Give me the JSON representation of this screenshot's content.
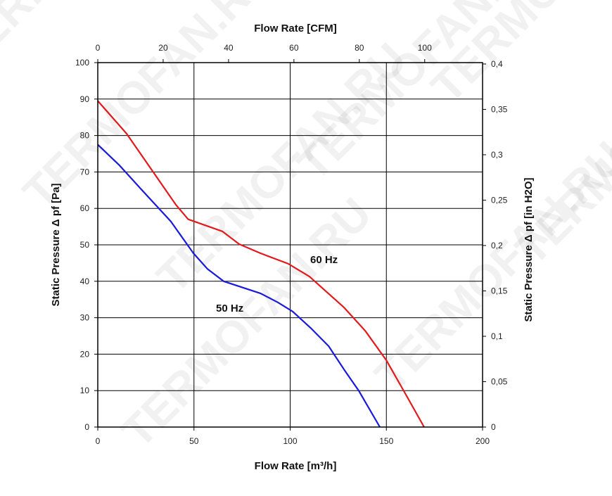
{
  "chart_data": {
    "type": "line",
    "watermark": "TERMOFAN.RU",
    "xlabel": "Flow Rate [m³/h]",
    "x2label": "Flow Rate [CFM]",
    "ylabel": "Static Pressure Δ pf [Pa]",
    "y2label": "Static Pressure Δ pf [in H2O]",
    "xlim": [
      0,
      200
    ],
    "ylim": [
      0,
      100
    ],
    "x2lim": [
      0,
      117.7
    ],
    "y2lim": [
      0,
      0.4015
    ],
    "xticks": [
      "0",
      "50",
      "100",
      "150",
      "200"
    ],
    "yticks": [
      "0",
      "10",
      "20",
      "30",
      "40",
      "50",
      "60",
      "70",
      "80",
      "90",
      "100"
    ],
    "x2ticks": [
      "0",
      "20",
      "40",
      "60",
      "80",
      "100"
    ],
    "y2ticks": [
      "0",
      "0,05",
      "0,1",
      "0,15",
      "0,2",
      "0,25",
      "0,3",
      "0,35",
      "0,4"
    ],
    "grid": true,
    "series": [
      {
        "name": "60 Hz",
        "color": "#e31a1c",
        "x": [
          0,
          15,
          40.6,
          47,
          64.7,
          73.5,
          84.5,
          99,
          110,
          128,
          139,
          150,
          161,
          169.6
        ],
        "y": [
          89.5,
          80.5,
          61,
          57,
          53.7,
          50.2,
          47.7,
          44.8,
          41.3,
          32.8,
          26.4,
          18.3,
          8.1,
          0
        ]
      },
      {
        "name": "50 Hz",
        "color": "#1a1adc",
        "x": [
          0,
          11.3,
          22.3,
          38,
          49.7,
          57,
          65.4,
          84.5,
          93.6,
          101.3,
          111,
          120,
          128,
          135.6,
          146.6
        ],
        "y": [
          77.5,
          71.8,
          65.4,
          56.4,
          47.7,
          43.4,
          40,
          36.7,
          34.2,
          31.7,
          27,
          22.2,
          15.8,
          10,
          0
        ]
      }
    ]
  }
}
